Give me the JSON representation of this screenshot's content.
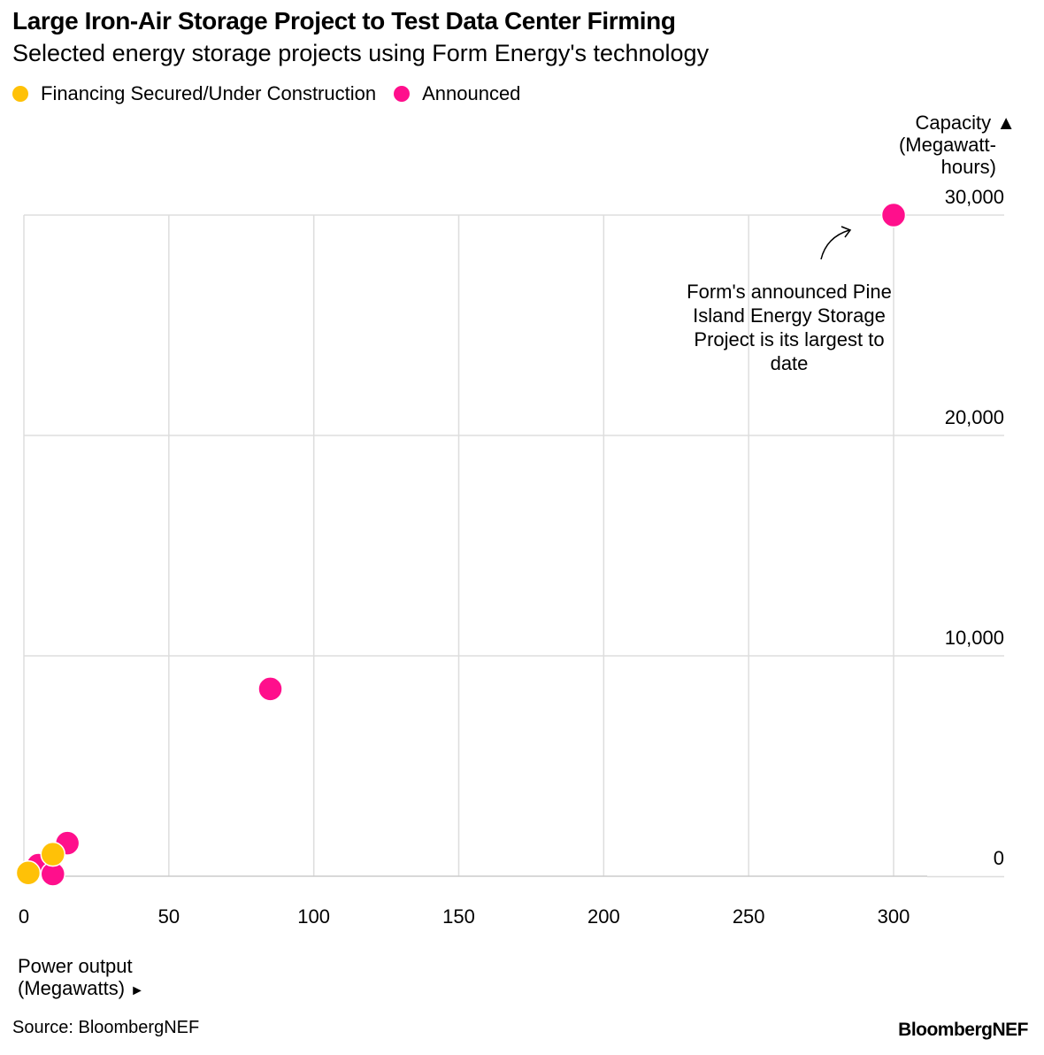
{
  "title": "Large Iron-Air Storage Project to Test Data Center Firming",
  "subtitle": "Selected energy storage projects using Form Energy's technology",
  "legend": [
    {
      "label": "Financing Secured/Under Construction",
      "color": "#FFC107"
    },
    {
      "label": "Announced",
      "color": "#FF0F8C"
    }
  ],
  "y_axis_label_line1": "Capacity",
  "y_axis_label_line2": "(Megawatt-",
  "y_axis_label_line3": "hours)",
  "y_arrow": "▲",
  "x_axis_label_line1": "Power output",
  "x_axis_label_line2": "(Megawatts)",
  "x_arrow": "►",
  "annotation": "Form's announced Pine Island Energy Storage Project is its largest to date",
  "source": "Source: BloombergNEF",
  "brand": "BloombergNEF",
  "chart_data": {
    "type": "scatter",
    "xlim": [
      0,
      340
    ],
    "ylim": [
      0,
      30000
    ],
    "x_ticks": [
      0,
      50,
      100,
      150,
      200,
      250,
      300
    ],
    "x_tick_labels": [
      "0",
      "50",
      "100",
      "150",
      "200",
      "250",
      "300"
    ],
    "y_ticks": [
      0,
      10000,
      20000,
      30000
    ],
    "y_tick_labels": [
      "0",
      "10,000",
      "20,000",
      "30,000"
    ],
    "grid": true,
    "legend_position": "top-left",
    "series": [
      {
        "name": "Announced",
        "color": "#FF0F8C",
        "points": [
          {
            "x": 300,
            "y": 30000
          },
          {
            "x": 85,
            "y": 8500
          },
          {
            "x": 15,
            "y": 1500
          },
          {
            "x": 5,
            "y": 500
          },
          {
            "x": 10,
            "y": 100
          }
        ]
      },
      {
        "name": "Financing Secured/Under Construction",
        "color": "#FFC107",
        "points": [
          {
            "x": 10,
            "y": 1000
          },
          {
            "x": 1.5,
            "y": 150
          }
        ]
      }
    ]
  }
}
